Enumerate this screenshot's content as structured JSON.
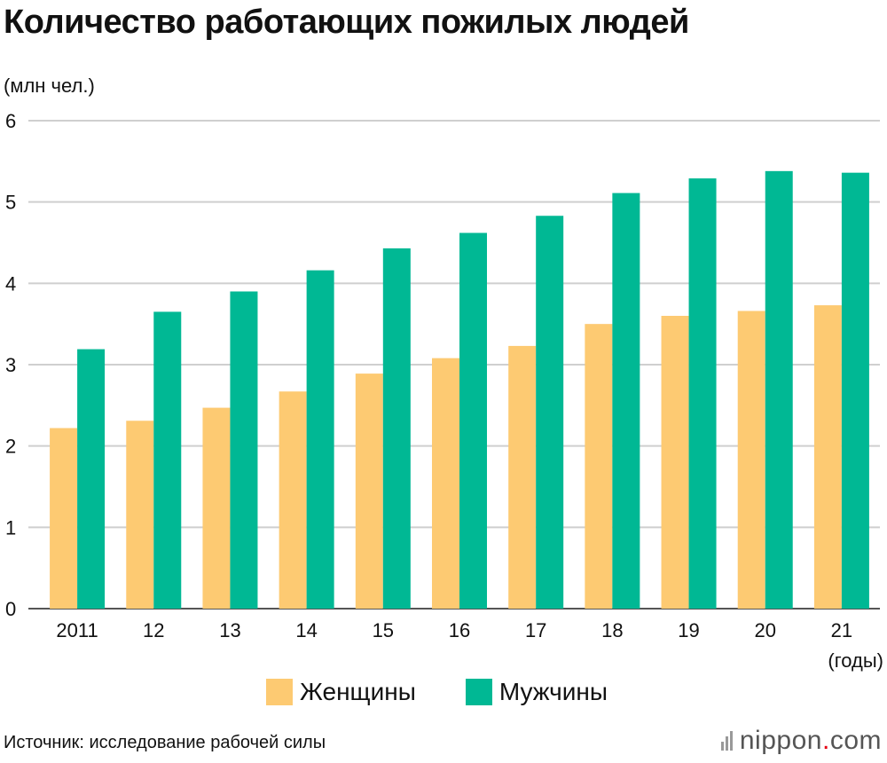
{
  "chart_data": {
    "type": "bar",
    "title": "Количество работающих пожилых людей",
    "unit_label": "(млн чел.)",
    "categories": [
      "2011",
      "12",
      "13",
      "14",
      "15",
      "16",
      "17",
      "18",
      "19",
      "20",
      "21"
    ],
    "x_unit_label": "(годы)",
    "ylim": [
      0,
      6
    ],
    "yticks": [
      "0",
      "1",
      "2",
      "3",
      "4",
      "5",
      "6"
    ],
    "grid": true,
    "series": [
      {
        "name": "Женщины",
        "color": "#fdca72",
        "values": [
          2.22,
          2.31,
          2.47,
          2.67,
          2.89,
          3.08,
          3.23,
          3.5,
          3.6,
          3.66,
          3.73
        ]
      },
      {
        "name": "Мужчины",
        "color": "#00b894",
        "values": [
          3.19,
          3.65,
          3.9,
          4.16,
          4.43,
          4.62,
          4.83,
          5.11,
          5.29,
          5.38,
          5.36
        ]
      }
    ],
    "legend_position": "bottom-center"
  },
  "footer": {
    "source": "Источник: исследование рабочей силы",
    "brand_main": "nippon",
    "brand_dot": ".",
    "brand_tld": "com"
  }
}
